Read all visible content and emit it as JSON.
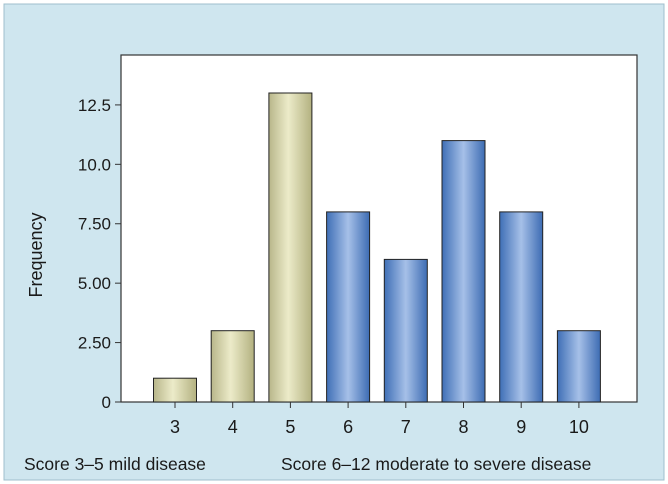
{
  "chart_data": {
    "type": "bar",
    "categories": [
      "3",
      "4",
      "5",
      "6",
      "7",
      "8",
      "9",
      "10"
    ],
    "values": [
      1,
      3,
      13,
      8,
      6,
      11,
      8,
      3
    ],
    "ylabel": "Frequency",
    "xlabel": "",
    "title": "",
    "ylim": [
      0,
      14.6
    ],
    "yticks": [
      0,
      2.5,
      5,
      7.5,
      10,
      12.5
    ],
    "ytick_labels": [
      "0",
      "2.50",
      "5.00",
      "7.50",
      "10.0",
      "12.5"
    ],
    "grid": false,
    "groups": [
      {
        "label": "Score 3–5 mild disease",
        "categories": [
          "3",
          "4",
          "5"
        ],
        "color": "#d8d6a8"
      },
      {
        "label": "Score 6–12 moderate to severe disease",
        "categories": [
          "6",
          "7",
          "8",
          "9",
          "10"
        ],
        "color": "#6e95cf"
      }
    ],
    "background_color": "#cfe6ef"
  }
}
